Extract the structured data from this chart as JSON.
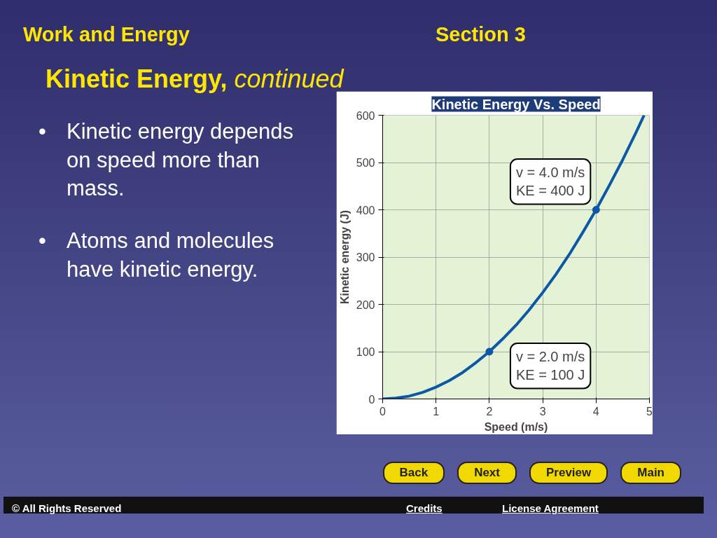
{
  "chart_data": {
    "type": "line",
    "title": "Kinetic Energy Vs. Speed",
    "xlabel": "Speed (m/s)",
    "ylabel": "Kinetic energy (J)",
    "x": [
      0,
      0.25,
      0.5,
      0.75,
      1,
      1.25,
      1.5,
      1.75,
      2,
      2.25,
      2.5,
      2.75,
      3,
      3.25,
      3.5,
      3.75,
      4,
      4.25,
      4.5,
      4.75,
      4.9
    ],
    "series": [
      {
        "color": "#0d58a6",
        "values": [
          0,
          2,
          6,
          14,
          25,
          39,
          56,
          77,
          100,
          127,
          156,
          189,
          225,
          264,
          306,
          352,
          400,
          452,
          506,
          564,
          600
        ]
      },
      {
        "type": "scatter",
        "x": [
          2,
          4
        ],
        "color": "#0d58a6",
        "values": [
          100,
          400
        ],
        "marker": "circle"
      }
    ],
    "xlim": [
      0,
      5
    ],
    "ylim": [
      0,
      600
    ],
    "xticks": [
      0,
      1,
      2,
      3,
      4,
      5
    ],
    "yticks": [
      0,
      100,
      200,
      300,
      400,
      500,
      600
    ],
    "grid": true,
    "line_style": "solid",
    "annotations": [
      {
        "text": "v = 4.0 m/s\nKE = 400 J",
        "x": 4,
        "y": 400
      },
      {
        "text": "v = 2.0 m/s\nKE = 100 J",
        "x": 2,
        "y": 100
      },
      "Work and Energy",
      "Section 3",
      "Kinetic Energy,",
      "continued",
      "•",
      "Kinetic energy depends on speed more than mass.",
      "•",
      "Atoms and molecules have kinetic energy.",
      "Back",
      "Next",
      "Preview",
      "Main",
      "© All Rights Reserved",
      "Credits",
      "License Agreement"
    ]
  }
}
